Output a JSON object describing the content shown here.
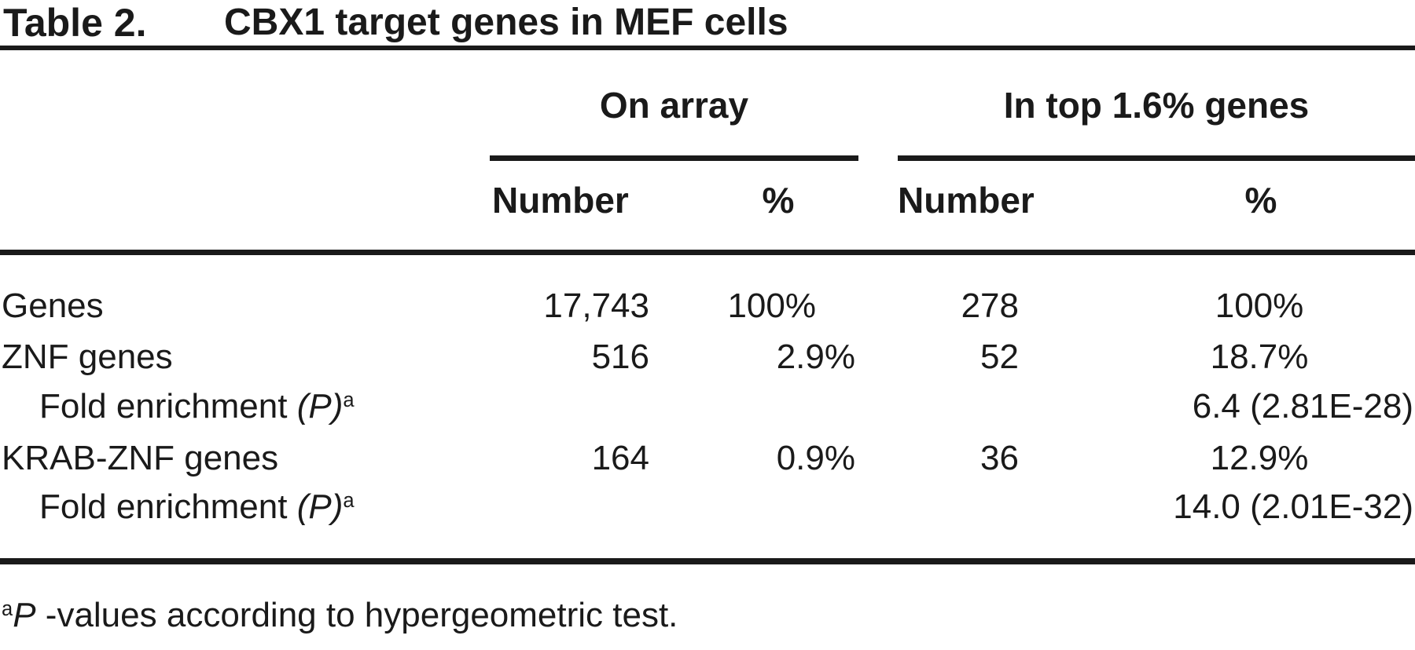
{
  "title": {
    "label": "Table 2.",
    "caption": "CBX1 target genes in MEF cells"
  },
  "header": {
    "groups": [
      {
        "label": "On array"
      },
      {
        "label": "In top 1.6% genes"
      }
    ],
    "subheaders": [
      {
        "label": "Number"
      },
      {
        "label": "%"
      },
      {
        "label": "Number"
      },
      {
        "label": "%"
      }
    ]
  },
  "table": {
    "rows": [
      {
        "label": "Genes",
        "on_array_number": "17,743",
        "on_array_pct": "100%",
        "top_number": "278",
        "top_pct": "100%"
      },
      {
        "label": "ZNF genes",
        "on_array_number": "516",
        "on_array_pct": "2.9%",
        "top_number": "52",
        "top_pct": "18.7%"
      },
      {
        "label_prefix": "Fold enrichment ",
        "label_p": "(P)",
        "label_sup": "a",
        "top_value": "6.4 (2.81E-28)"
      },
      {
        "label": "KRAB-ZNF genes",
        "on_array_number": "164",
        "on_array_pct": "0.9%",
        "top_number": "36",
        "top_pct": "12.9%"
      },
      {
        "label_prefix": "Fold enrichment ",
        "label_p": "(P)",
        "label_sup": "a",
        "top_value": "14.0 (2.01E-32)"
      }
    ]
  },
  "footnote": {
    "sup": "a",
    "p_label": "P",
    "text": " -values according to hypergeometric test."
  },
  "colors": {
    "text": "#1a1a1a",
    "background": "#ffffff"
  }
}
